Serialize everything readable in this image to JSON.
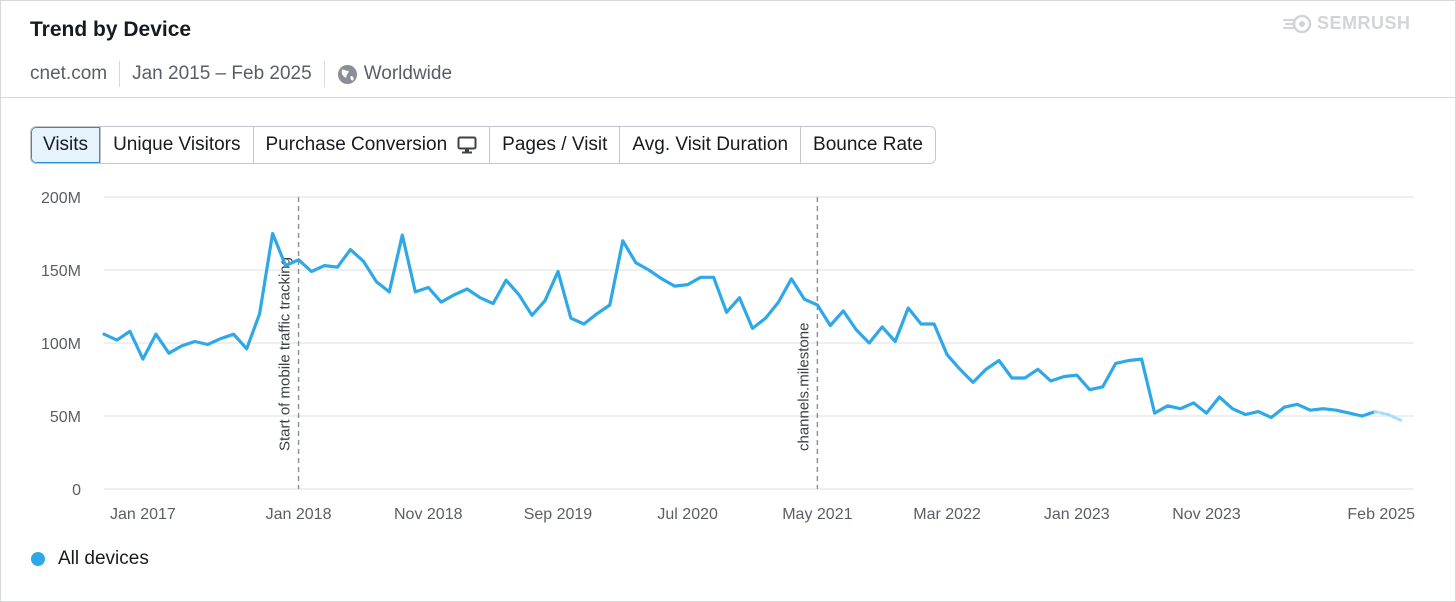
{
  "header": {
    "title": "Trend by Device",
    "brand": "SEMRUSH",
    "domain": "cnet.com",
    "date_range": "Jan 2015 – Feb 2025",
    "region": "Worldwide"
  },
  "tabs": [
    {
      "label": "Visits",
      "active": true
    },
    {
      "label": "Unique Visitors",
      "active": false
    },
    {
      "label": "Purchase Conversion",
      "active": false,
      "icon": "desktop-icon"
    },
    {
      "label": "Pages / Visit",
      "active": false
    },
    {
      "label": "Avg. Visit Duration",
      "active": false
    },
    {
      "label": "Bounce Rate",
      "active": false
    }
  ],
  "colors": {
    "series": "#2fa8e8",
    "forecast": "#a9dcf6",
    "grid": "#dcdfe3",
    "axis_text": "#5a5e66",
    "accent": "#2a8ed6"
  },
  "chart_data": {
    "type": "line",
    "x_ticks": [
      "Jan 2017",
      "Jan 2018",
      "Nov 2018",
      "Sep 2019",
      "Jul 2020",
      "May 2021",
      "Mar 2022",
      "Jan 2023",
      "Nov 2023",
      "Feb 2025"
    ],
    "y_ticks": [
      "200M",
      "150M",
      "100M",
      "50M",
      "0"
    ],
    "ylim": [
      0,
      200
    ],
    "y_unit": "M",
    "grid": true,
    "legend_position": "bottom-left",
    "x_start": "Oct 2016",
    "x_end": "Mar 2025",
    "annotations": [
      {
        "date": "Jan 2018",
        "label": "Start of mobile traffic tracking"
      },
      {
        "date": "May 2021",
        "label": "channels.milestone"
      }
    ],
    "series": [
      {
        "name": "All devices",
        "points": [
          [
            "Oct 2016",
            106
          ],
          [
            "Nov 2016",
            102
          ],
          [
            "Dec 2016",
            108
          ],
          [
            "Jan 2017",
            89
          ],
          [
            "Feb 2017",
            106
          ],
          [
            "Mar 2017",
            93
          ],
          [
            "Apr 2017",
            98
          ],
          [
            "May 2017",
            101
          ],
          [
            "Jun 2017",
            99
          ],
          [
            "Jul 2017",
            103
          ],
          [
            "Aug 2017",
            106
          ],
          [
            "Sep 2017",
            96
          ],
          [
            "Oct 2017",
            120
          ],
          [
            "Nov 2017",
            175
          ],
          [
            "Dec 2017",
            153
          ],
          [
            "Jan 2018",
            157
          ],
          [
            "Feb 2018",
            149
          ],
          [
            "Mar 2018",
            153
          ],
          [
            "Apr 2018",
            152
          ],
          [
            "May 2018",
            164
          ],
          [
            "Jun 2018",
            156
          ],
          [
            "Jul 2018",
            142
          ],
          [
            "Aug 2018",
            135
          ],
          [
            "Sep 2018",
            174
          ],
          [
            "Oct 2018",
            135
          ],
          [
            "Nov 2018",
            138
          ],
          [
            "Dec 2018",
            128
          ],
          [
            "Jan 2019",
            133
          ],
          [
            "Feb 2019",
            137
          ],
          [
            "Mar 2019",
            131
          ],
          [
            "Apr 2019",
            127
          ],
          [
            "May 2019",
            143
          ],
          [
            "Jun 2019",
            133
          ],
          [
            "Jul 2019",
            119
          ],
          [
            "Aug 2019",
            129
          ],
          [
            "Sep 2019",
            149
          ],
          [
            "Oct 2019",
            117
          ],
          [
            "Nov 2019",
            113
          ],
          [
            "Dec 2019",
            120
          ],
          [
            "Jan 2020",
            126
          ],
          [
            "Feb 2020",
            170
          ],
          [
            "Mar 2020",
            155
          ],
          [
            "Apr 2020",
            150
          ],
          [
            "May 2020",
            144
          ],
          [
            "Jun 2020",
            139
          ],
          [
            "Jul 2020",
            140
          ],
          [
            "Aug 2020",
            145
          ],
          [
            "Sep 2020",
            145
          ],
          [
            "Oct 2020",
            121
          ],
          [
            "Nov 2020",
            131
          ],
          [
            "Dec 2020",
            110
          ],
          [
            "Jan 2021",
            117
          ],
          [
            "Feb 2021",
            128
          ],
          [
            "Mar 2021",
            144
          ],
          [
            "Apr 2021",
            130
          ],
          [
            "May 2021",
            126
          ],
          [
            "Jun 2021",
            112
          ],
          [
            "Jul 2021",
            122
          ],
          [
            "Aug 2021",
            109
          ],
          [
            "Sep 2021",
            100
          ],
          [
            "Oct 2021",
            111
          ],
          [
            "Nov 2021",
            101
          ],
          [
            "Dec 2021",
            124
          ],
          [
            "Jan 2022",
            113
          ],
          [
            "Feb 2022",
            113
          ],
          [
            "Mar 2022",
            92
          ],
          [
            "Apr 2022",
            82
          ],
          [
            "May 2022",
            73
          ],
          [
            "Jun 2022",
            82
          ],
          [
            "Jul 2022",
            88
          ],
          [
            "Aug 2022",
            76
          ],
          [
            "Sep 2022",
            76
          ],
          [
            "Oct 2022",
            82
          ],
          [
            "Nov 2022",
            74
          ],
          [
            "Dec 2022",
            77
          ],
          [
            "Jan 2023",
            78
          ],
          [
            "Feb 2023",
            68
          ],
          [
            "Mar 2023",
            70
          ],
          [
            "Apr 2023",
            86
          ],
          [
            "May 2023",
            88
          ],
          [
            "Jun 2023",
            89
          ],
          [
            "Jul 2023",
            52
          ],
          [
            "Aug 2023",
            57
          ],
          [
            "Sep 2023",
            55
          ],
          [
            "Oct 2023",
            59
          ],
          [
            "Nov 2023",
            52
          ],
          [
            "Dec 2023",
            63
          ],
          [
            "Jan 2024",
            55
          ],
          [
            "Feb 2024",
            51
          ],
          [
            "Mar 2024",
            53
          ],
          [
            "Apr 2024",
            49
          ],
          [
            "May 2024",
            56
          ],
          [
            "Jun 2024",
            58
          ],
          [
            "Jul 2024",
            54
          ],
          [
            "Aug 2024",
            55
          ],
          [
            "Sep 2024",
            54
          ],
          [
            "Oct 2024",
            52
          ],
          [
            "Nov 2024",
            50
          ],
          [
            "Dec 2024",
            53
          ]
        ],
        "forecast": [
          [
            "Dec 2024",
            53
          ],
          [
            "Jan 2025",
            51
          ],
          [
            "Feb 2025",
            47
          ]
        ]
      }
    ]
  }
}
